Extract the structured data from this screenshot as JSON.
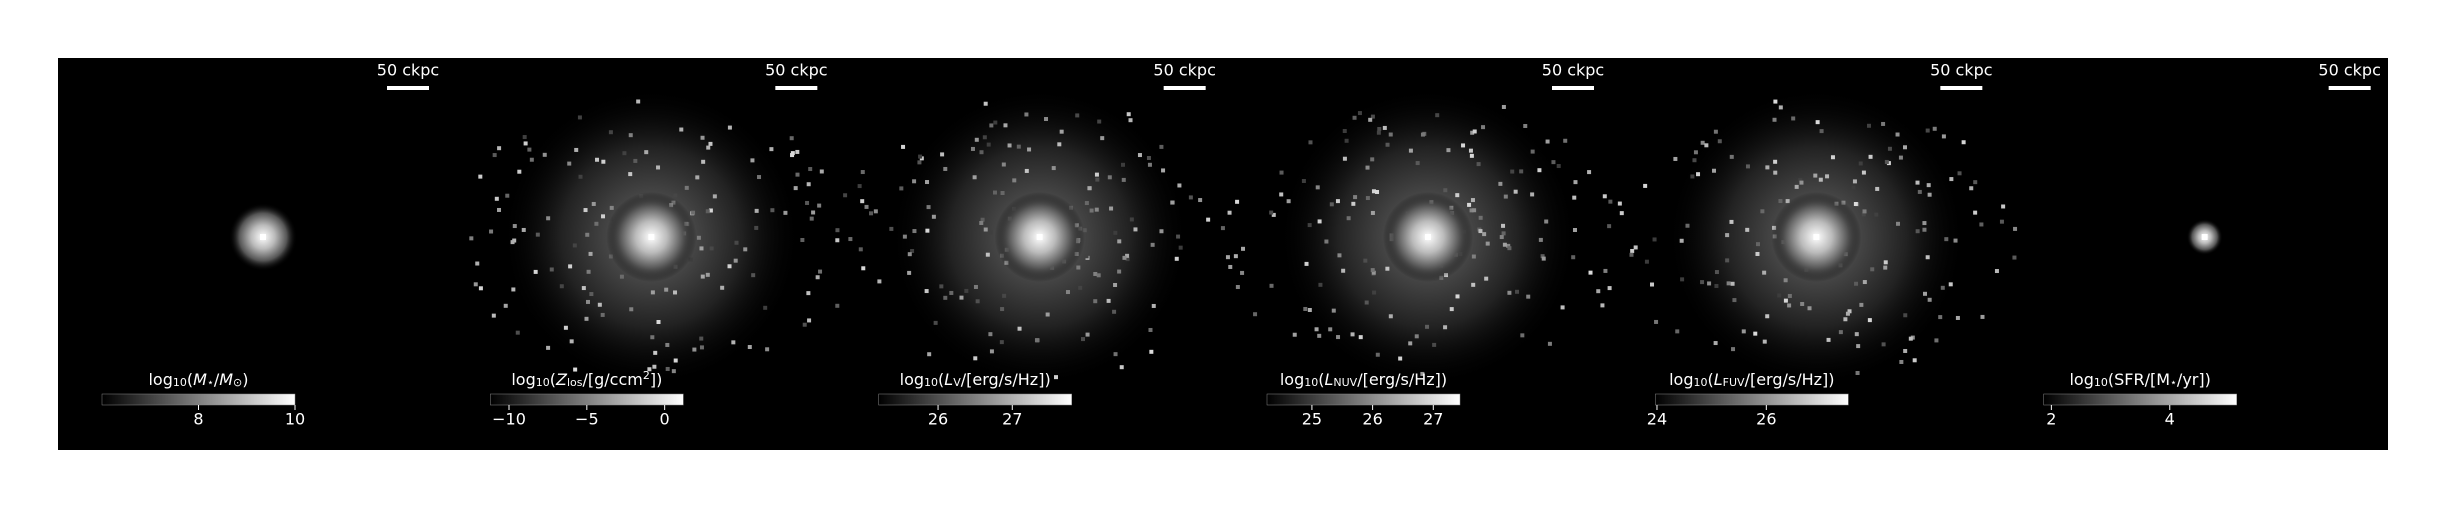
{
  "panels": [
    {
      "scale_bar": "50 ckpc",
      "colorbar": {
        "label": [
          {
            "text": "log"
          },
          {
            "text": "10",
            "sub": true
          },
          {
            "text": "("
          },
          {
            "text": "M",
            "italic": true
          },
          {
            "text": "⋆",
            "sub": true
          },
          {
            "text": "/"
          },
          {
            "text": "M",
            "italic": true
          },
          {
            "text": "⊙",
            "sub": true
          },
          {
            "text": ")"
          }
        ],
        "lim": [
          6,
          10
        ],
        "ticks": [
          8,
          10
        ]
      }
    },
    {
      "scale_bar": "50 ckpc",
      "colorbar": {
        "label": [
          {
            "text": "log"
          },
          {
            "text": "10",
            "sub": true
          },
          {
            "text": "("
          },
          {
            "text": "Z",
            "italic": true
          },
          {
            "text": "los",
            "sub": true
          },
          {
            "text": "/[g/ccm"
          },
          {
            "text": "2",
            "sup": true
          },
          {
            "text": "])"
          }
        ],
        "lim": [
          -11.2,
          1.2
        ],
        "ticks": [
          {
            "value": -10,
            "label": "−10"
          },
          {
            "value": -5,
            "label": "−5"
          },
          0
        ]
      }
    },
    {
      "scale_bar": "50 ckpc",
      "colorbar": {
        "label": [
          {
            "text": "log"
          },
          {
            "text": "10",
            "sub": true
          },
          {
            "text": "("
          },
          {
            "text": "L",
            "italic": true
          },
          {
            "text": "V",
            "sub": true
          },
          {
            "text": "/[erg/s/Hz])"
          }
        ],
        "lim": [
          25.2,
          27.8
        ],
        "ticks": [
          26,
          27
        ]
      }
    },
    {
      "scale_bar": "50 ckpc",
      "colorbar": {
        "label": [
          {
            "text": "log"
          },
          {
            "text": "10",
            "sub": true
          },
          {
            "text": "("
          },
          {
            "text": "L",
            "italic": true
          },
          {
            "text": "NUV",
            "sub": true
          },
          {
            "text": "/[erg/s/Hz])"
          }
        ],
        "lim": [
          24.26,
          27.44
        ],
        "ticks": [
          25,
          26,
          27
        ]
      }
    },
    {
      "scale_bar": "50 ckpc",
      "colorbar": {
        "label": [
          {
            "text": "log"
          },
          {
            "text": "10",
            "sub": true
          },
          {
            "text": "("
          },
          {
            "text": "L",
            "italic": true
          },
          {
            "text": "FUV",
            "sub": true
          },
          {
            "text": "/[erg/s/Hz])"
          }
        ],
        "lim": [
          23.97,
          27.5
        ],
        "ticks": [
          24,
          26
        ]
      }
    },
    {
      "scale_bar": "50 ckpc",
      "colorbar": {
        "label": [
          {
            "text": "log"
          },
          {
            "text": "10",
            "sub": true
          },
          {
            "text": "(SFR/[M"
          },
          {
            "text": "⋆",
            "sub": true
          },
          {
            "text": "/yr])"
          }
        ],
        "lim": [
          1.87,
          5.13
        ],
        "ticks": [
          2,
          4
        ]
      }
    }
  ]
}
